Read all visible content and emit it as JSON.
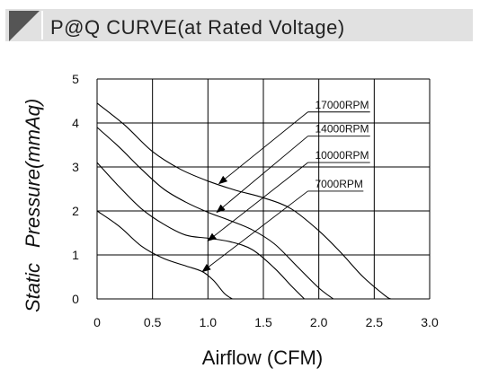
{
  "header": {
    "title": "P@Q CURVE(at Rated Voltage)"
  },
  "colors": {
    "header_band": "#e1e1e1",
    "corner_mark": "#555555",
    "ink": "#000000"
  },
  "chart_data": {
    "type": "line",
    "title": "P@Q CURVE(at Rated Voltage)",
    "xlabel": "Airflow (CFM)",
    "ylabel_words": [
      "Static",
      "Pressure(mmAq)"
    ],
    "xlim": [
      0,
      3.0
    ],
    "ylim": [
      0,
      5
    ],
    "x_ticks": [
      "0",
      "0.5",
      "1.0",
      "1.5",
      "2.0",
      "2.5",
      "3.0"
    ],
    "y_ticks": [
      "0",
      "1",
      "2",
      "3",
      "4",
      "5"
    ],
    "grid": true,
    "series": [
      {
        "name": "17000RPM",
        "x": [
          0,
          0.25,
          0.5,
          0.75,
          1.0,
          1.25,
          1.5,
          1.75,
          2.0,
          2.2,
          2.4,
          2.6,
          2.65
        ],
        "y": [
          4.45,
          3.95,
          3.35,
          2.95,
          2.68,
          2.47,
          2.3,
          2.05,
          1.55,
          1.05,
          0.5,
          0.07,
          0
        ]
      },
      {
        "name": "14000RPM",
        "x": [
          0,
          0.2,
          0.4,
          0.6,
          0.8,
          1.0,
          1.2,
          1.4,
          1.6,
          1.8,
          2.0,
          2.13
        ],
        "y": [
          3.9,
          3.45,
          2.95,
          2.5,
          2.2,
          1.97,
          1.78,
          1.57,
          1.25,
          0.75,
          0.25,
          0
        ]
      },
      {
        "name": "10000RPM",
        "x": [
          0,
          0.2,
          0.4,
          0.6,
          0.8,
          1.0,
          1.2,
          1.4,
          1.6,
          1.75,
          1.87
        ],
        "y": [
          3.1,
          2.55,
          2.05,
          1.7,
          1.45,
          1.38,
          1.3,
          1.12,
          0.7,
          0.3,
          0
        ]
      },
      {
        "name": "7000RPM",
        "x": [
          0,
          0.2,
          0.4,
          0.6,
          0.8,
          0.95,
          1.05,
          1.15,
          1.22
        ],
        "y": [
          2.0,
          1.65,
          1.2,
          0.92,
          0.75,
          0.62,
          0.42,
          0.12,
          0
        ]
      }
    ],
    "labels": [
      {
        "text": "17000RPM",
        "anchor": [
          1.95,
          4.25
        ],
        "target": [
          1.1,
          2.62
        ]
      },
      {
        "text": "14000RPM",
        "anchor": [
          1.95,
          3.7
        ],
        "target": [
          1.08,
          1.97
        ]
      },
      {
        "text": "10000RPM",
        "anchor": [
          1.95,
          3.1
        ],
        "target": [
          1.0,
          1.32
        ]
      },
      {
        "text": "7000RPM",
        "anchor": [
          1.95,
          2.45
        ],
        "target": [
          0.95,
          0.62
        ]
      }
    ]
  }
}
